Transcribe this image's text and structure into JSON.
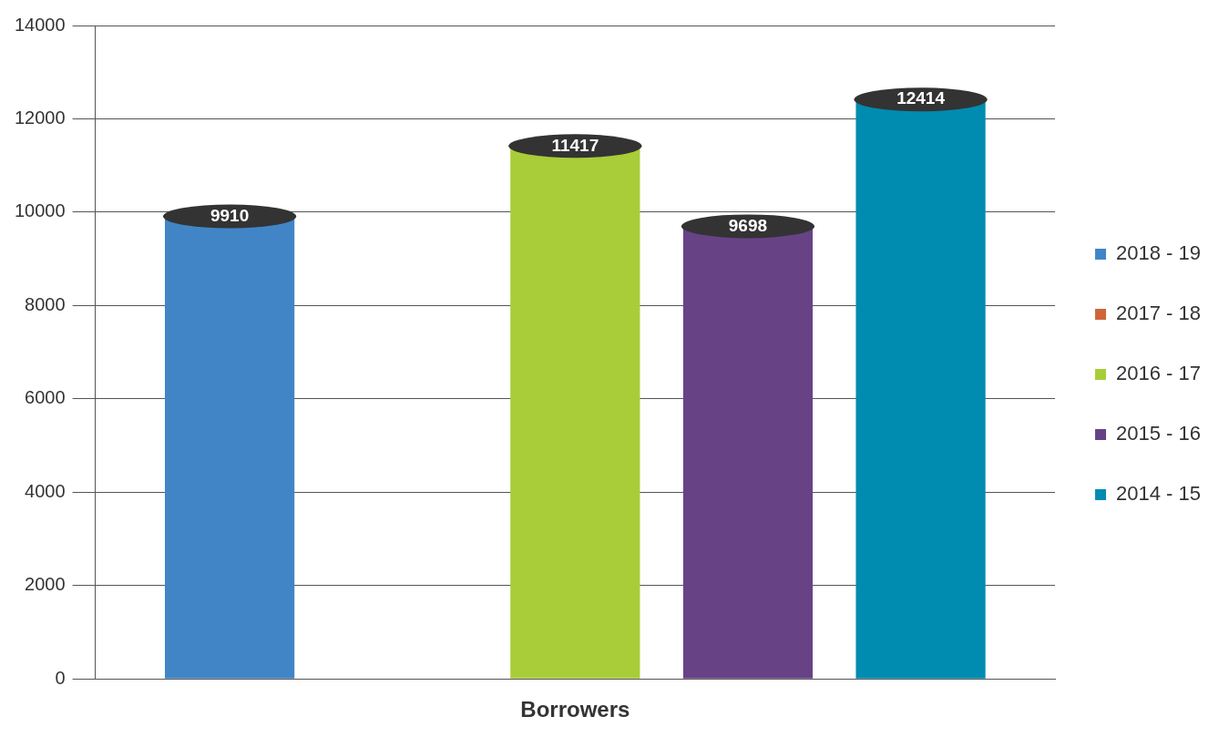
{
  "chart_data": {
    "type": "bar",
    "categories": [
      "Borrowers"
    ],
    "series": [
      {
        "name": "2018 - 19",
        "color": "#4185c6",
        "values": [
          9910
        ]
      },
      {
        "name": "2017 - 18",
        "color": "#d0643a",
        "values": [
          null
        ]
      },
      {
        "name": "2016 - 17",
        "color": "#a8cd38",
        "values": [
          11417
        ]
      },
      {
        "name": "2015 - 16",
        "color": "#674386",
        "values": [
          9698
        ]
      },
      {
        "name": "2014 - 15",
        "color": "#008bb0",
        "values": [
          12414
        ]
      }
    ],
    "ylim": [
      0,
      14000
    ],
    "yticks": [
      0,
      2000,
      4000,
      6000,
      8000,
      10000,
      12000,
      14000
    ],
    "grid": "y",
    "legend": "right",
    "data_labels": true
  }
}
